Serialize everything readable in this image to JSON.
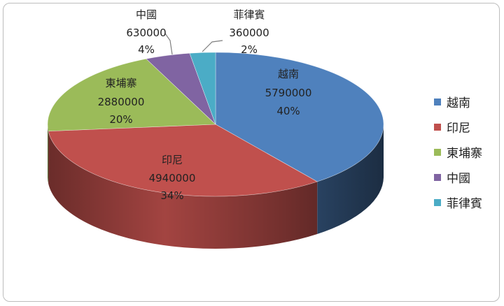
{
  "chart_data": {
    "type": "pie",
    "style": "3d",
    "categories": [
      "越南",
      "印尼",
      "東埔寨",
      "中國",
      "菲律賓"
    ],
    "values": [
      5790000,
      4940000,
      2880000,
      630000,
      360000
    ],
    "percent_labels": [
      "40%",
      "34%",
      "20%",
      "4%",
      "2%"
    ],
    "value_labels": [
      "5790000",
      "4940000",
      "2880000",
      "630000",
      "360000"
    ],
    "colors": [
      "#4F81BD",
      "#C0504D",
      "#9BBB59",
      "#8064A2",
      "#4BACC6"
    ],
    "legend": {
      "position": "right",
      "entries": [
        "越南",
        "印尼",
        "東埔寨",
        "中國",
        "菲律賓"
      ]
    }
  }
}
